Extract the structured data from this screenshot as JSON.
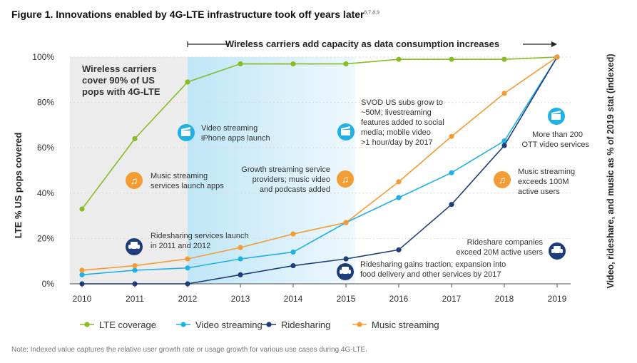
{
  "title": "Figure 1. Innovations enabled by 4G-LTE infrastructure took off years later",
  "title_superscript": "6,7,8,9",
  "note": "Note: Indexed value captures the relative user growth rate or usage growth for various use cases during 4G-LTE.",
  "colors": {
    "lte": "#86bc25",
    "video": "#1fb1e6",
    "ride": "#1f3d7a",
    "music": "#f39c34",
    "icon_blue": "#1fb1e6",
    "icon_orange": "#f39c34",
    "icon_navy": "#1f3d7a"
  },
  "chart_data": {
    "type": "line",
    "x": [
      2010,
      2011,
      2012,
      2013,
      2014,
      2015,
      2016,
      2017,
      2018,
      2019
    ],
    "ylabel": "LTE % US pops covered",
    "ylabel_right": "Video, rideshare, and music as % of 2019 stat (indexed)",
    "ylim": [
      0,
      100
    ],
    "yticks": [
      "0%",
      "20%",
      "40%",
      "60%",
      "80%",
      "100%"
    ],
    "series": [
      {
        "name": "LTE coverage",
        "values": [
          33,
          64,
          89,
          97,
          97,
          97,
          99,
          99,
          99,
          100
        ]
      },
      {
        "name": "Video streaming",
        "values": [
          4,
          6,
          7,
          11,
          14,
          27,
          38,
          49,
          63,
          100
        ]
      },
      {
        "name": "Ridesharing",
        "values": [
          0,
          0,
          0,
          4,
          8,
          11,
          15,
          35,
          61,
          100
        ]
      },
      {
        "name": "Music streaming",
        "values": [
          6,
          8,
          11,
          16,
          22,
          27,
          45,
          65,
          84,
          100
        ]
      }
    ],
    "annotations": {
      "capacity_banner": "Wireless carriers add capacity as data consumption increases",
      "coverage_box": [
        "Wireless carriers",
        "cover 90% of US",
        "pops with 4G-LTE"
      ],
      "video_iphone": [
        "Video streaming",
        "iPhone apps launch"
      ],
      "music_apps": [
        "Music streaming",
        "services launch apps"
      ],
      "ridesharing_launch": [
        "Ridesharing services launch",
        "in 2011 and 2012"
      ],
      "growth_streaming": [
        "Growth streaming service",
        "providers; music video",
        "and podcasts added"
      ],
      "svod": [
        "SVOD US subs grow to",
        "~50M; livestreaming",
        "features added to social",
        "media; mobile video",
        ">1 hour/day by 2017"
      ],
      "ridesharing_traction": [
        "Ridesharing gains traction; expansion into",
        "food delivery and other services by 2017"
      ],
      "ott": [
        "More than 200",
        "OTT video services"
      ],
      "music_100m": [
        "Music streaming",
        "exceeds 100M",
        "active users"
      ],
      "rideshare_20m": [
        "Rideshare companies",
        "exceed 20M active users"
      ]
    },
    "legend_placement": "bottom"
  }
}
